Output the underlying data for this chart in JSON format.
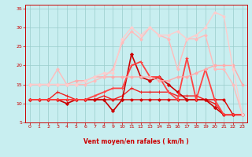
{
  "bg_color": "#c8eef0",
  "grid_color": "#99cccc",
  "xlabel": "Vent moyen/en rafales ( km/h )",
  "xlabel_color": "#cc0000",
  "tick_color": "#cc0000",
  "arrow_color": "#cc0000",
  "xlim": [
    -0.5,
    23.5
  ],
  "ylim": [
    5,
    36
  ],
  "yticks": [
    5,
    10,
    15,
    20,
    25,
    30,
    35
  ],
  "xticks": [
    0,
    1,
    2,
    3,
    4,
    5,
    6,
    7,
    8,
    9,
    10,
    11,
    12,
    13,
    14,
    15,
    16,
    17,
    18,
    19,
    20,
    21,
    22,
    23
  ],
  "series": [
    {
      "x": [
        0,
        1,
        2,
        3,
        4,
        5,
        6,
        7,
        8,
        9,
        10,
        11,
        12,
        13,
        14,
        15,
        16,
        17,
        18,
        19,
        20,
        21,
        22,
        23
      ],
      "y": [
        11,
        11,
        11,
        11,
        11,
        11,
        11,
        11,
        11,
        11,
        11,
        11,
        11,
        11,
        11,
        11,
        11,
        11,
        11,
        11,
        11,
        11,
        7,
        7
      ],
      "color": "#dd0000",
      "lw": 1.0,
      "marker": "D",
      "ms": 1.8
    },
    {
      "x": [
        0,
        1,
        2,
        3,
        4,
        5,
        6,
        7,
        8,
        9,
        10,
        11,
        12,
        13,
        14,
        15,
        16,
        17,
        18,
        19,
        20,
        21,
        22,
        23
      ],
      "y": [
        11,
        11,
        11,
        13,
        12,
        11,
        11,
        11,
        12,
        11,
        12,
        14,
        13,
        13,
        13,
        13,
        12,
        12,
        12,
        11,
        10,
        7,
        7,
        7
      ],
      "color": "#ee2222",
      "lw": 1.0,
      "marker": "+",
      "ms": 3.0
    },
    {
      "x": [
        0,
        1,
        2,
        3,
        4,
        5,
        6,
        7,
        8,
        9,
        10,
        11,
        12,
        13,
        14,
        15,
        16,
        17,
        18,
        19,
        20,
        21,
        22,
        23
      ],
      "y": [
        11,
        11,
        11,
        11,
        10,
        11,
        11,
        11,
        11,
        8,
        11,
        23,
        17,
        16,
        17,
        15,
        13,
        11,
        11,
        11,
        9,
        7,
        7,
        7
      ],
      "color": "#cc0000",
      "lw": 1.2,
      "marker": "D",
      "ms": 2.0
    },
    {
      "x": [
        0,
        1,
        2,
        3,
        4,
        5,
        6,
        7,
        8,
        9,
        10,
        11,
        12,
        13,
        14,
        15,
        16,
        17,
        18,
        19,
        20,
        21,
        22,
        23
      ],
      "y": [
        11,
        11,
        11,
        11,
        11,
        11,
        11,
        12,
        13,
        14,
        14,
        20,
        21,
        17,
        17,
        13,
        11,
        22,
        11,
        19,
        11,
        7,
        7,
        7
      ],
      "color": "#ff4444",
      "lw": 1.3,
      "marker": "+",
      "ms": 3.0
    },
    {
      "x": [
        0,
        1,
        2,
        3,
        4,
        5,
        6,
        7,
        8,
        9,
        10,
        11,
        12,
        13,
        14,
        15,
        16,
        17,
        18,
        19,
        20,
        21,
        22,
        23
      ],
      "y": [
        15,
        15,
        15,
        15,
        15,
        16,
        16,
        17,
        17,
        17,
        17,
        17,
        17,
        17,
        16,
        16,
        17,
        17,
        18,
        19,
        20,
        20,
        20,
        15
      ],
      "color": "#ffaaaa",
      "lw": 1.0,
      "marker": "D",
      "ms": 1.8
    },
    {
      "x": [
        0,
        1,
        2,
        3,
        4,
        5,
        6,
        7,
        8,
        9,
        10,
        11,
        12,
        13,
        14,
        15,
        16,
        17,
        18,
        19,
        20,
        21,
        22,
        23
      ],
      "y": [
        15,
        15,
        15,
        19,
        15,
        15,
        15,
        16,
        17,
        19,
        26,
        29,
        27,
        30,
        28,
        27,
        19,
        27,
        27,
        28,
        19,
        19,
        15,
        7
      ],
      "color": "#ffbbbb",
      "lw": 1.0,
      "marker": "D",
      "ms": 1.8
    },
    {
      "x": [
        0,
        1,
        2,
        3,
        4,
        5,
        6,
        7,
        8,
        9,
        10,
        11,
        12,
        13,
        14,
        15,
        16,
        17,
        18,
        19,
        20,
        21,
        22,
        23
      ],
      "y": [
        15,
        15,
        15,
        15,
        15,
        15,
        16,
        17,
        18,
        18,
        27,
        30,
        28,
        30,
        28,
        28,
        29,
        27,
        28,
        30,
        34,
        33,
        19,
        7
      ],
      "color": "#ffcccc",
      "lw": 1.0,
      "marker": "D",
      "ms": 1.8
    }
  ]
}
